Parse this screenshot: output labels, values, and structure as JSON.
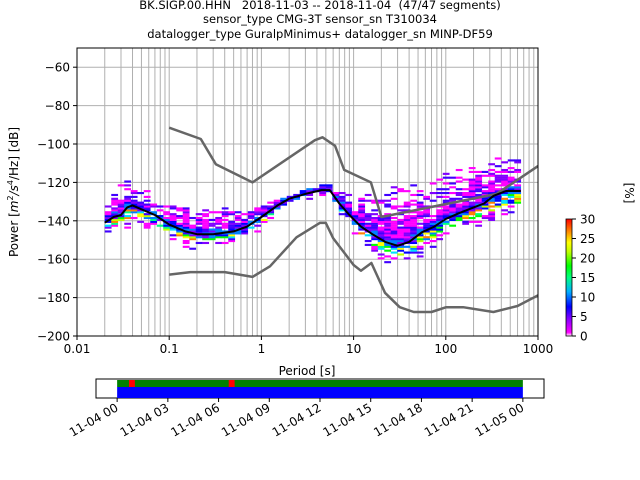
{
  "chart_data": [
    {
      "type": "heatmap",
      "title_lines": [
        "BK.SIGP.00.HHN   2018-11-03 -- 2018-11-04  (47/47 segments)",
        "sensor_type CMG-3T sensor_sn T310034",
        "datalogger_type GuralpMinimus+ datalogger_sn MINP-DF59"
      ],
      "xlabel": "Period [s]",
      "ylabel_parts": [
        "Power [",
        "m",
        "2",
        "/",
        "s",
        "4",
        "/Hz] [dB]"
      ],
      "xscale": "log",
      "xlim": [
        0.01,
        1000
      ],
      "ylim": [
        -200,
        -50
      ],
      "xticks": [
        {
          "value": 0.01,
          "label": "0.01"
        },
        {
          "value": 0.1,
          "label": "0.1"
        },
        {
          "value": 1,
          "label": "1"
        },
        {
          "value": 10,
          "label": "10"
        },
        {
          "value": 100,
          "label": "100"
        },
        {
          "value": 1000,
          "label": "1000"
        }
      ],
      "yticks": [
        {
          "value": -60,
          "label": "−60"
        },
        {
          "value": -80,
          "label": "−80"
        },
        {
          "value": -100,
          "label": "−100"
        },
        {
          "value": -120,
          "label": "−120"
        },
        {
          "value": -140,
          "label": "−140"
        },
        {
          "value": -160,
          "label": "−160"
        },
        {
          "value": -180,
          "label": "−180"
        },
        {
          "value": -200,
          "label": "−200"
        }
      ],
      "grid": true,
      "colorbar": {
        "label": "[%]",
        "range": [
          0,
          30
        ],
        "ticks": [
          {
            "value": 0,
            "label": "0"
          },
          {
            "value": 5,
            "label": "5"
          },
          {
            "value": 10,
            "label": "10"
          },
          {
            "value": 15,
            "label": "15"
          },
          {
            "value": 20,
            "label": "20"
          },
          {
            "value": 25,
            "label": "25"
          },
          {
            "value": 30,
            "label": "30"
          }
        ],
        "colormap": [
          "#ffffff",
          "#ff00ff",
          "#8000ff",
          "#0000ff",
          "#00c0ff",
          "#00ff80",
          "#00ff00",
          "#c0ff00",
          "#ffff00",
          "#ff8000",
          "#ff0000"
        ]
      },
      "series": [
        {
          "name": "high-noise-model",
          "color": "#666666",
          "points": [
            [
              0.1,
              -91.5
            ],
            [
              0.22,
              -97.4
            ],
            [
              0.32,
              -110.5
            ],
            [
              0.8,
              -120
            ],
            [
              3.8,
              -98
            ],
            [
              4.6,
              -96.5
            ],
            [
              6.3,
              -101
            ],
            [
              7.9,
              -113.5
            ],
            [
              15.4,
              -120
            ],
            [
              20,
              -138
            ],
            [
              354.8,
              -126
            ],
            [
              1000,
              -111.5
            ]
          ]
        },
        {
          "name": "low-noise-model",
          "color": "#666666",
          "points": [
            [
              0.1,
              -168
            ],
            [
              0.17,
              -166.7
            ],
            [
              0.4,
              -166.7
            ],
            [
              0.8,
              -169.2
            ],
            [
              1.24,
              -163.7
            ],
            [
              2.4,
              -148.6
            ],
            [
              4.3,
              -141.1
            ],
            [
              5,
              -141.1
            ],
            [
              6,
              -149
            ],
            [
              10,
              -163
            ],
            [
              12,
              -166
            ],
            [
              15.6,
              -162
            ],
            [
              21.9,
              -177.5
            ],
            [
              31.6,
              -185
            ],
            [
              45,
              -187.5
            ],
            [
              70,
              -187.5
            ],
            [
              101,
              -185
            ],
            [
              154,
              -185
            ],
            [
              328,
              -187.5
            ],
            [
              600,
              -184.4
            ],
            [
              1000,
              -178.8
            ]
          ]
        },
        {
          "name": "mode-psd",
          "color": "#000000",
          "points": [
            [
              0.02,
              -141
            ],
            [
              0.025,
              -138
            ],
            [
              0.03,
              -137
            ],
            [
              0.035,
              -133
            ],
            [
              0.04,
              -132
            ],
            [
              0.05,
              -134
            ],
            [
              0.07,
              -137
            ],
            [
              0.1,
              -142
            ],
            [
              0.15,
              -145.5
            ],
            [
              0.2,
              -147
            ],
            [
              0.3,
              -147
            ],
            [
              0.5,
              -145.5
            ],
            [
              0.7,
              -143
            ],
            [
              1,
              -138
            ],
            [
              1.5,
              -132
            ],
            [
              2,
              -128.5
            ],
            [
              3,
              -126
            ],
            [
              4.5,
              -124
            ],
            [
              5.5,
              -124
            ],
            [
              7,
              -131
            ],
            [
              9,
              -137
            ],
            [
              12,
              -143
            ],
            [
              16,
              -147
            ],
            [
              22,
              -151
            ],
            [
              30,
              -153
            ],
            [
              40,
              -151
            ],
            [
              55,
              -146
            ],
            [
              75,
              -143
            ],
            [
              100,
              -139
            ],
            [
              140,
              -136
            ],
            [
              200,
              -133
            ],
            [
              260,
              -131
            ],
            [
              330,
              -127
            ],
            [
              450,
              -124.5
            ],
            [
              650,
              -124.5
            ]
          ]
        }
      ],
      "histogram_envelope": {
        "description": "2D probability density of PSD values per period bin",
        "period_range": [
          0.02,
          650
        ],
        "upper_edge": [
          [
            0.02,
            -128
          ],
          [
            0.035,
            -120
          ],
          [
            0.05,
            -124
          ],
          [
            0.1,
            -133
          ],
          [
            0.3,
            -133
          ],
          [
            1,
            -133
          ],
          [
            2,
            -128
          ],
          [
            5,
            -122
          ],
          [
            10,
            -127
          ],
          [
            20,
            -125
          ],
          [
            50,
            -122
          ],
          [
            100,
            -117
          ],
          [
            300,
            -110
          ],
          [
            650,
            -106
          ]
        ],
        "lower_edge": [
          [
            0.02,
            -146
          ],
          [
            0.05,
            -142
          ],
          [
            0.1,
            -150
          ],
          [
            0.2,
            -155
          ],
          [
            0.5,
            -152
          ],
          [
            1,
            -144
          ],
          [
            2,
            -131
          ],
          [
            5,
            -126
          ],
          [
            8,
            -140
          ],
          [
            15,
            -155
          ],
          [
            25,
            -163
          ],
          [
            40,
            -163
          ],
          [
            70,
            -154
          ],
          [
            100,
            -148
          ],
          [
            200,
            -143
          ],
          [
            400,
            -138
          ],
          [
            650,
            -137
          ]
        ]
      }
    },
    {
      "type": "bar",
      "name": "data-availability-timeline",
      "xticks": [
        "11-04 00",
        "11-04 03",
        "11-04 06",
        "11-04 09",
        "11-04 12",
        "11-04 15",
        "11-04 18",
        "11-04 21",
        "11-05 00"
      ],
      "xrange_hours": [
        -1.25,
        25.25
      ],
      "tracks": [
        {
          "name": "data-used",
          "color": "#008000",
          "start_hour": 0,
          "end_hour": 24
        },
        {
          "name": "data-available",
          "color": "#0000ff",
          "start_hour": 0,
          "end_hour": 24
        }
      ],
      "gap_markers": [
        {
          "color": "#ff0000",
          "start_hour": 0.7,
          "end_hour": 1.05
        },
        {
          "color": "#ff0000",
          "start_hour": 6.6,
          "end_hour": 6.95
        }
      ]
    }
  ]
}
